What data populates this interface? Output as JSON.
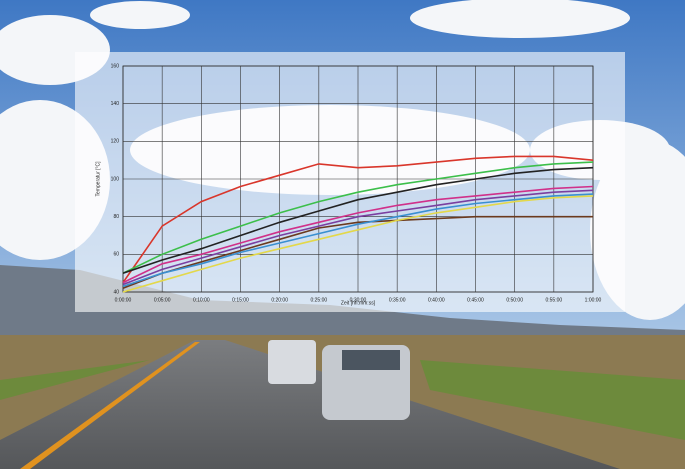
{
  "chart_data": {
    "type": "line",
    "y_label": "Temperatur [°C]",
    "x_label": "Zeit [hh:mm:ss]",
    "x": [
      0,
      5,
      10,
      15,
      20,
      25,
      30,
      35,
      40,
      45,
      50,
      55,
      60
    ],
    "xlim": [
      0,
      60
    ],
    "xticks": [
      {
        "value": 0,
        "label": "0:00:00"
      },
      {
        "value": 5,
        "label": "0:05:00"
      },
      {
        "value": 10,
        "label": "0:10:00"
      },
      {
        "value": 15,
        "label": "0:15:00"
      },
      {
        "value": 20,
        "label": "0:20:00"
      },
      {
        "value": 25,
        "label": "0:25:00"
      },
      {
        "value": 30,
        "label": "0:30:00"
      },
      {
        "value": 35,
        "label": "0:35:00"
      },
      {
        "value": 40,
        "label": "0:40:00"
      },
      {
        "value": 45,
        "label": "0:45:00"
      },
      {
        "value": 50,
        "label": "0:50:00"
      },
      {
        "value": 55,
        "label": "0:55:00"
      },
      {
        "value": 60,
        "label": "1:00:00"
      }
    ],
    "ylim": [
      40,
      160
    ],
    "yticks": [
      40,
      60,
      80,
      100,
      120,
      140,
      160
    ],
    "grid": true,
    "series": [
      {
        "color": "#d9362b",
        "values": [
          45,
          75,
          88,
          96,
          102,
          108,
          106,
          107,
          109,
          111,
          112,
          112,
          110
        ]
      },
      {
        "color": "#3cbf4a",
        "values": [
          50,
          60,
          68,
          75,
          82,
          88,
          93,
          97,
          100,
          103,
          106,
          108,
          109
        ]
      },
      {
        "color": "#222222",
        "values": [
          50,
          57,
          63,
          70,
          77,
          83,
          89,
          93,
          97,
          100,
          103,
          105,
          106
        ]
      },
      {
        "color": "#d0308a",
        "values": [
          45,
          55,
          60,
          66,
          72,
          77,
          82,
          86,
          89,
          91,
          93,
          95,
          96
        ]
      },
      {
        "color": "#7a3fa0",
        "values": [
          44,
          52,
          58,
          64,
          70,
          75,
          80,
          83,
          86,
          89,
          91,
          93,
          94
        ]
      },
      {
        "color": "#6b3a1e",
        "values": [
          42,
          50,
          56,
          62,
          68,
          74,
          77,
          78,
          79,
          80,
          80,
          80,
          80
        ]
      },
      {
        "color": "#3a8fd0",
        "values": [
          43,
          50,
          55,
          61,
          66,
          71,
          76,
          80,
          84,
          87,
          89,
          91,
          92
        ]
      },
      {
        "color": "#e3d84a",
        "values": [
          40,
          46,
          52,
          58,
          63,
          68,
          73,
          78,
          82,
          85,
          88,
          90,
          91
        ]
      }
    ]
  }
}
